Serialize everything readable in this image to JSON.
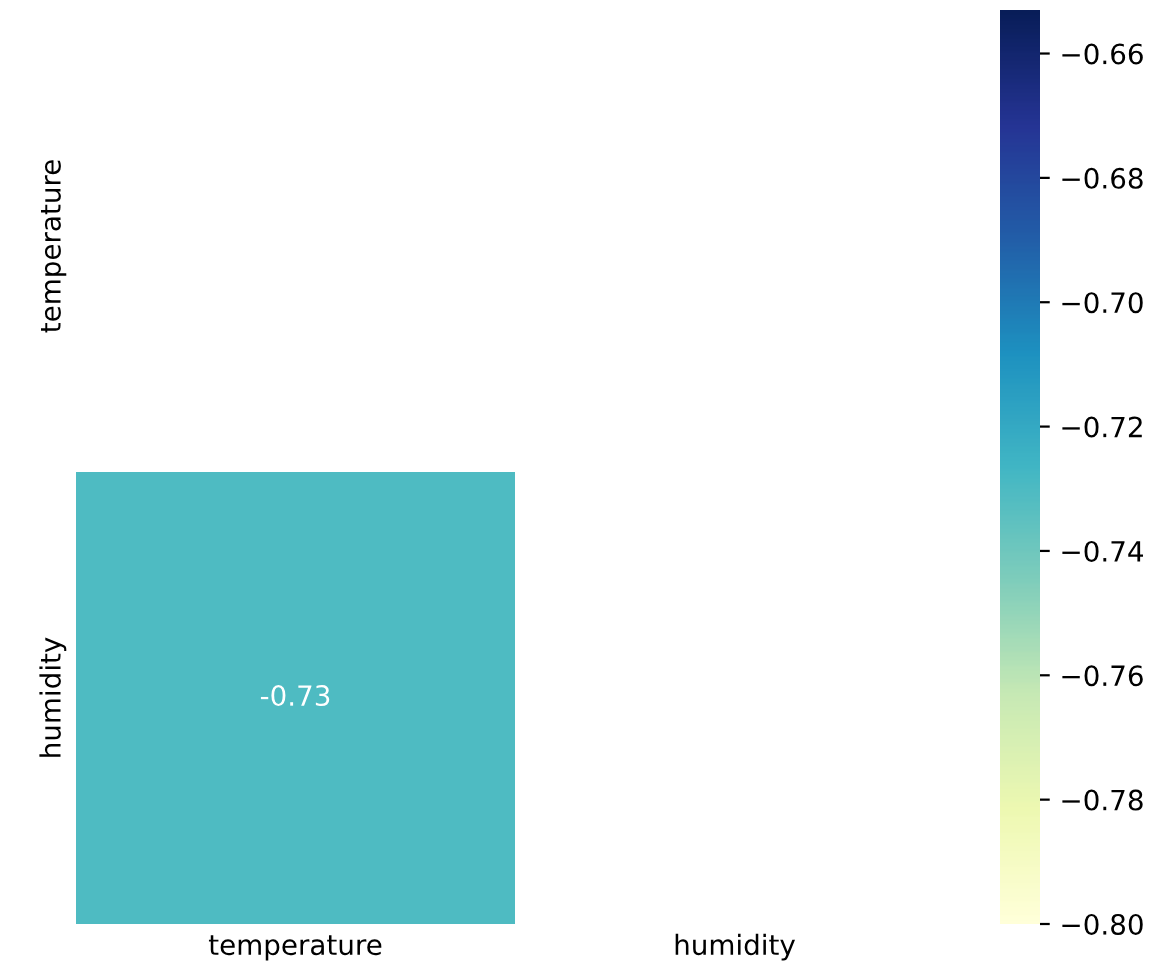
{
  "chart_data": {
    "type": "heatmap",
    "categories": [
      "temperature",
      "humidity"
    ],
    "y_categories": [
      "temperature",
      "humidity"
    ],
    "cells": [
      [
        null,
        null
      ],
      [
        -0.73,
        null
      ]
    ],
    "data_labels": true,
    "clim": [
      -0.8,
      -0.653
    ],
    "cticks": [
      {
        "value": -0.8,
        "label": "−0.80"
      },
      {
        "value": -0.78,
        "label": "−0.78"
      },
      {
        "value": -0.76,
        "label": "−0.76"
      },
      {
        "value": -0.74,
        "label": "−0.74"
      },
      {
        "value": -0.72,
        "label": "−0.72"
      },
      {
        "value": -0.7,
        "label": "−0.70"
      },
      {
        "value": -0.68,
        "label": "−0.68"
      },
      {
        "value": -0.66,
        "label": "−0.66"
      }
    ]
  }
}
